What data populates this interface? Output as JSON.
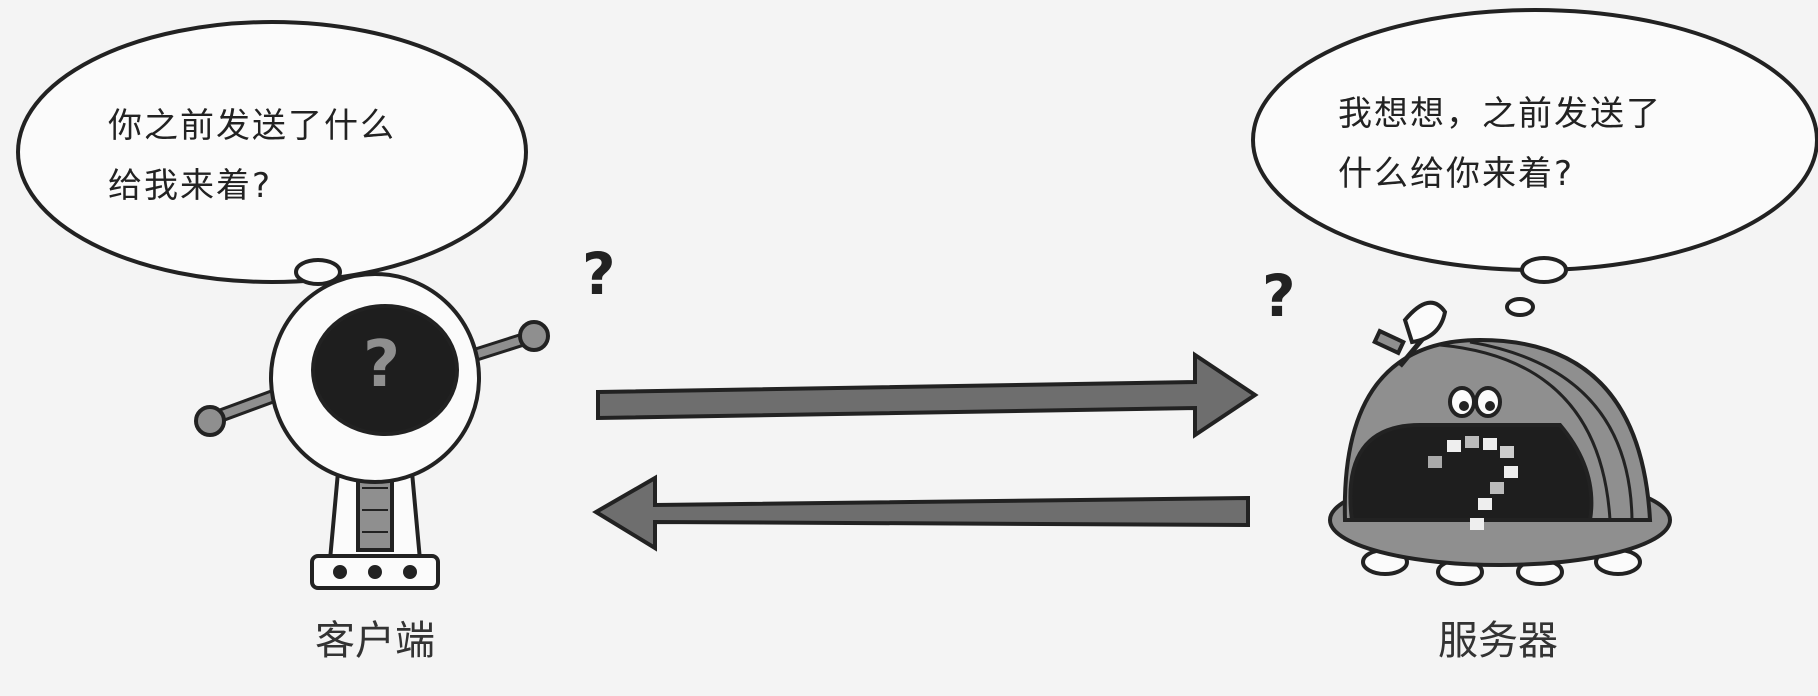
{
  "client": {
    "thought_line1": "你之前发送了什么",
    "thought_line2": "给我来着?",
    "label": "客户端",
    "question_mark": "?",
    "face_question_mark": "?"
  },
  "server": {
    "thought_line1": "我想想，之前发送了",
    "thought_line2": "什么给你来着?",
    "label": "服务器",
    "question_mark": "?"
  },
  "colors": {
    "background": "#f4f4f4",
    "outline": "#222222",
    "arrow_fill": "#6e6e6e",
    "robot_gray": "#8f8f8f",
    "robot_dark": "#1e1e1e"
  },
  "icons": {
    "client": "client-robot-icon",
    "server": "server-robot-icon",
    "request_arrow": "arrow-right-icon",
    "response_arrow": "arrow-left-icon"
  }
}
